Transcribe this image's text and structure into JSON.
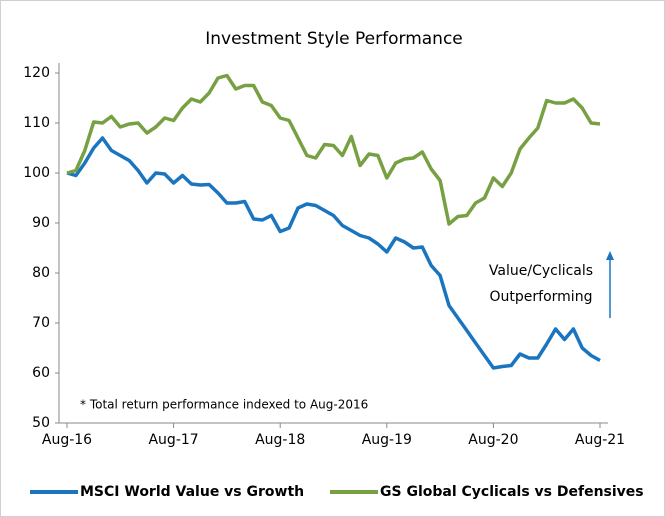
{
  "chart_data": {
    "type": "line",
    "title": "Investment Style Performance",
    "categories": [
      "Aug-16",
      null,
      null,
      null,
      null,
      null,
      null,
      null,
      null,
      null,
      null,
      null,
      "Aug-17",
      null,
      null,
      null,
      null,
      null,
      null,
      null,
      null,
      null,
      null,
      null,
      "Aug-18",
      null,
      null,
      null,
      null,
      null,
      null,
      null,
      null,
      null,
      null,
      null,
      "Aug-19",
      null,
      null,
      null,
      null,
      null,
      null,
      null,
      null,
      null,
      null,
      null,
      "Aug-20",
      null,
      null,
      null,
      null,
      null,
      null,
      null,
      null,
      null,
      null,
      null,
      "Aug-21"
    ],
    "series": [
      {
        "name": "MSCI World Value vs Growth",
        "color": "#1a75c0",
        "values": [
          100,
          99.5,
          102,
          105,
          107,
          104.5,
          103.5,
          102.5,
          100.5,
          98,
          100,
          99.8,
          98,
          99.5,
          97.8,
          97.6,
          97.7,
          96,
          94,
          94,
          94.3,
          90.8,
          90.6,
          91.5,
          88.3,
          89,
          93,
          93.8,
          93.5,
          92.5,
          91.5,
          89.5,
          88.5,
          87.5,
          87,
          85.8,
          84.2,
          87,
          86.2,
          85,
          85.2,
          81.5,
          79.5,
          73.5,
          71,
          68.5,
          66,
          63.5,
          61,
          61.3,
          61.5,
          63.8,
          63,
          63,
          65.8,
          68.8,
          66.7,
          68.8,
          65,
          63.5,
          62.5
        ]
      },
      {
        "name": "GS Global Cyclicals vs Defensives",
        "color": "#77a043",
        "values": [
          100,
          100.5,
          104.5,
          110.2,
          110,
          111.3,
          109.2,
          109.8,
          110,
          108,
          109.2,
          111,
          110.5,
          113,
          114.8,
          114.2,
          116,
          119,
          119.5,
          116.8,
          117.5,
          117.5,
          114.2,
          113.5,
          111,
          110.5,
          107,
          103.5,
          103,
          105.7,
          105.5,
          103.5,
          107.3,
          101.5,
          103.8,
          103.5,
          99,
          102,
          102.8,
          103,
          104.2,
          100.8,
          98.5,
          89.8,
          91.3,
          91.5,
          94,
          95,
          99,
          97.3,
          100,
          104.8,
          107,
          109,
          114.5,
          114,
          114,
          114.8,
          113,
          110,
          109.8
        ]
      }
    ],
    "ylim": [
      50,
      120
    ],
    "yticks": [
      50,
      60,
      70,
      80,
      90,
      100,
      110,
      120
    ],
    "annotation": [
      "Value/Cyclicals",
      "Outperforming"
    ],
    "note": "* Total return performance indexed to Aug-2016",
    "legend": "bottom"
  }
}
